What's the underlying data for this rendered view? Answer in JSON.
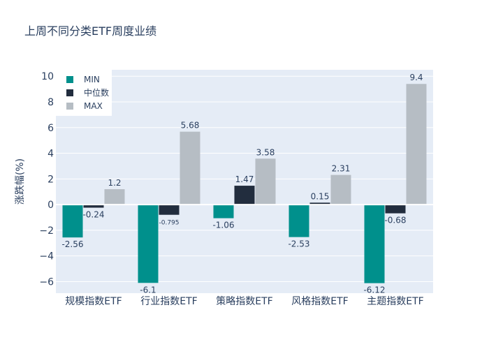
{
  "chart_data": {
    "type": "bar",
    "title": "上周不同分类ETF周度业绩",
    "xlabel": "",
    "ylabel": "涨跌幅(%)",
    "ylim": [
      -6.9,
      10.5
    ],
    "yticks": [
      -6,
      -4,
      -2,
      0,
      2,
      4,
      6,
      8,
      10
    ],
    "ytick_labels": [
      "−6",
      "−4",
      "−2",
      "0",
      "2",
      "4",
      "6",
      "8",
      "10"
    ],
    "categories": [
      "规模指数ETF",
      "行业指数ETF",
      "策略指数ETF",
      "风格指数ETF",
      "主题指数ETF"
    ],
    "series": [
      {
        "name": "MIN",
        "color": "#00908c",
        "values": [
          -2.56,
          -6.1,
          -1.06,
          -2.53,
          -6.12
        ],
        "labels": [
          "-2.56",
          "-6.1",
          "-1.06",
          "-2.53",
          "-6.12"
        ]
      },
      {
        "name": "中位数",
        "color": "#222d3e",
        "values": [
          -0.24,
          -0.795,
          1.47,
          0.15,
          -0.68
        ],
        "labels": [
          "-0.24",
          "-0.795",
          "1.47",
          "0.15",
          "-0.68"
        ]
      },
      {
        "name": "MAX",
        "color": "#b6bdc4",
        "values": [
          1.2,
          5.68,
          3.58,
          2.31,
          9.4
        ],
        "labels": [
          "1.2",
          "5.68",
          "3.58",
          "2.31",
          "9.4"
        ]
      }
    ],
    "legend_position": "top-left",
    "grid": true,
    "plot_bg": "#e5ecf6"
  }
}
